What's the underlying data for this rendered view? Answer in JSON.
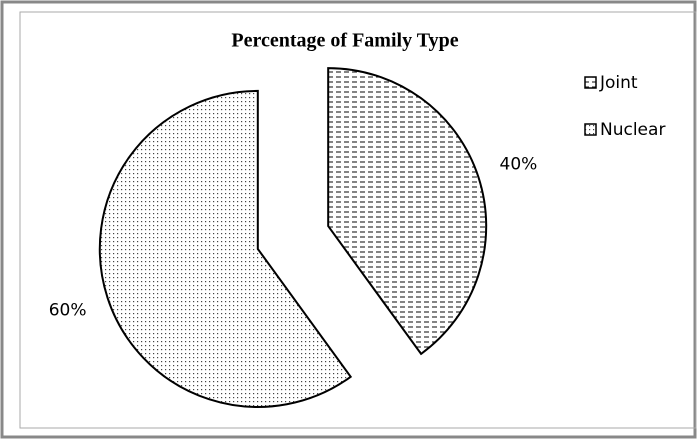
{
  "chart_data": {
    "type": "pie",
    "title": "Percentage of Family Type",
    "categories": [
      "Joint",
      "Nuclear"
    ],
    "values": [
      40,
      60
    ],
    "value_labels": [
      "40%",
      "60%"
    ],
    "legend": "right"
  }
}
